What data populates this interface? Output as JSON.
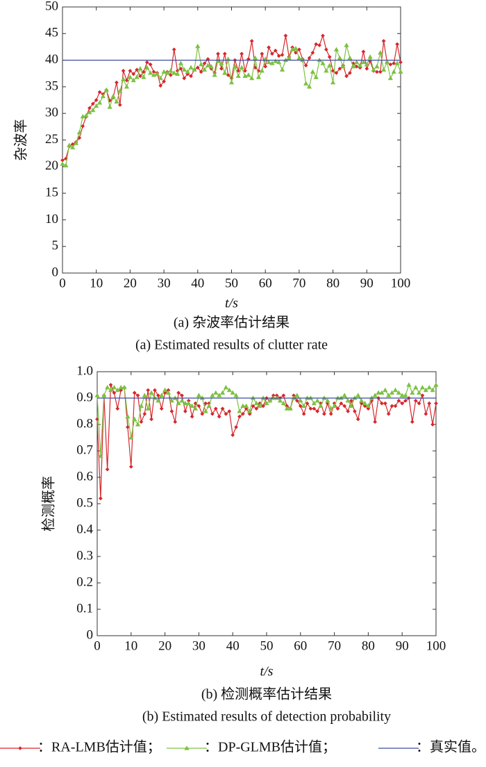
{
  "chart_data": [
    {
      "type": "line",
      "ylabel": "杂波率",
      "xlabel": "t/s",
      "caption": "(a) 杂波率估计结果",
      "caption_en": "(a) Estimated results of clutter rate",
      "x": [
        0,
        1,
        2,
        3,
        4,
        5,
        6,
        7,
        8,
        9,
        10,
        11,
        12,
        13,
        14,
        15,
        16,
        17,
        18,
        19,
        20,
        21,
        22,
        23,
        24,
        25,
        26,
        27,
        28,
        29,
        30,
        31,
        32,
        33,
        34,
        35,
        36,
        37,
        38,
        39,
        40,
        41,
        42,
        43,
        44,
        45,
        46,
        47,
        48,
        49,
        50,
        51,
        52,
        53,
        54,
        55,
        56,
        57,
        58,
        59,
        60,
        61,
        62,
        63,
        64,
        65,
        66,
        67,
        68,
        69,
        70,
        71,
        72,
        73,
        74,
        75,
        76,
        77,
        78,
        79,
        80,
        81,
        82,
        83,
        84,
        85,
        86,
        87,
        88,
        89,
        90,
        91,
        92,
        93,
        94,
        95,
        96,
        97,
        98,
        99,
        100
      ],
      "xlim": [
        0,
        100
      ],
      "xticks": [
        0,
        10,
        20,
        30,
        40,
        50,
        60,
        70,
        80,
        90,
        100
      ],
      "ylim": [
        0,
        50
      ],
      "yticks": [
        0,
        5,
        10,
        15,
        20,
        25,
        30,
        35,
        40,
        45,
        50
      ],
      "grid": false,
      "series": [
        {
          "name": "：RA-LMB估计值；",
          "color": "#d7262b",
          "marker": "diamond",
          "values": [
            21.2,
            21.5,
            23.8,
            24.2,
            24.6,
            25.4,
            27.6,
            29.4,
            31.0,
            31.8,
            32.5,
            34.0,
            33.6,
            34.4,
            32.4,
            33.0,
            35.8,
            31.6,
            38.0,
            36.2,
            38.0,
            37.4,
            38.2,
            37.0,
            37.8,
            39.6,
            39.2,
            37.8,
            37.6,
            35.2,
            36.0,
            37.8,
            37.2,
            42.0,
            38.0,
            38.4,
            36.6,
            37.4,
            37.0,
            38.2,
            38.6,
            37.8,
            39.4,
            40.2,
            38.4,
            37.6,
            41.2,
            38.4,
            41.2,
            37.2,
            36.6,
            40.0,
            38.0,
            41.2,
            38.0,
            40.2,
            43.6,
            38.6,
            38.0,
            41.2,
            38.8,
            42.4,
            41.2,
            41.8,
            40.8,
            41.0,
            44.6,
            40.6,
            42.4,
            41.4,
            42.0,
            40.2,
            39.0,
            40.4,
            41.4,
            43.0,
            42.8,
            44.6,
            42.0,
            40.6,
            38.0,
            37.6,
            38.4,
            39.0,
            37.0,
            37.6,
            39.4,
            38.8,
            38.6,
            41.6,
            38.4,
            39.8,
            38.0,
            37.8,
            37.8,
            43.6,
            39.6,
            39.2,
            39.4,
            43.0,
            39.6
          ]
        },
        {
          "name": "：DP-GLMB估计值；",
          "color": "#7cc142",
          "marker": "triangle",
          "values": [
            20.5,
            20.2,
            24.0,
            23.6,
            24.4,
            26.4,
            29.4,
            29.6,
            30.2,
            30.6,
            31.4,
            32.0,
            33.2,
            34.4,
            31.2,
            33.2,
            32.2,
            34.2,
            36.4,
            35.0,
            36.8,
            36.2,
            36.8,
            38.4,
            36.8,
            38.6,
            37.6,
            37.2,
            37.4,
            36.6,
            37.8,
            37.6,
            38.0,
            37.6,
            37.4,
            39.4,
            38.2,
            37.8,
            38.6,
            38.2,
            42.6,
            39.2,
            38.2,
            39.0,
            38.8,
            37.2,
            39.8,
            39.4,
            37.6,
            40.2,
            35.8,
            38.8,
            37.0,
            38.6,
            37.0,
            37.2,
            36.6,
            40.4,
            36.8,
            38.0,
            40.2,
            39.6,
            39.4,
            39.8,
            39.6,
            38.2,
            40.0,
            40.4,
            42.0,
            42.2,
            40.4,
            40.0,
            35.6,
            35.0,
            37.8,
            36.8,
            40.0,
            39.4,
            38.0,
            39.0,
            35.8,
            42.0,
            40.4,
            38.8,
            42.8,
            40.4,
            38.8,
            39.6,
            39.0,
            39.6,
            39.2,
            40.6,
            38.2,
            38.8,
            41.4,
            38.2,
            39.6,
            36.6,
            37.8,
            39.4,
            37.8
          ]
        },
        {
          "name": "：真实值。",
          "color": "#3a4aa0",
          "marker": "none",
          "x": [
            0,
            100
          ],
          "values": [
            40,
            40
          ]
        }
      ]
    },
    {
      "type": "line",
      "ylabel": "检测概率",
      "xlabel": "t/s",
      "caption": "(b) 检测概率估计结果",
      "caption_en": "(b) Estimated results of detection probability",
      "x": [
        0,
        1,
        2,
        3,
        4,
        5,
        6,
        7,
        8,
        9,
        10,
        11,
        12,
        13,
        14,
        15,
        16,
        17,
        18,
        19,
        20,
        21,
        22,
        23,
        24,
        25,
        26,
        27,
        28,
        29,
        30,
        31,
        32,
        33,
        34,
        35,
        36,
        37,
        38,
        39,
        40,
        41,
        42,
        43,
        44,
        45,
        46,
        47,
        48,
        49,
        50,
        51,
        52,
        53,
        54,
        55,
        56,
        57,
        58,
        59,
        60,
        61,
        62,
        63,
        64,
        65,
        66,
        67,
        68,
        69,
        70,
        71,
        72,
        73,
        74,
        75,
        76,
        77,
        78,
        79,
        80,
        81,
        82,
        83,
        84,
        85,
        86,
        87,
        88,
        89,
        90,
        91,
        92,
        93,
        94,
        95,
        96,
        97,
        98,
        99,
        100
      ],
      "xlim": [
        0,
        100
      ],
      "xticks": [
        0,
        10,
        20,
        30,
        40,
        50,
        60,
        70,
        80,
        90,
        100
      ],
      "ylim": [
        0,
        1
      ],
      "yticks": [
        0,
        0.1,
        0.2,
        0.3,
        0.4,
        0.5,
        0.6,
        0.7,
        0.8,
        0.9,
        {
          "value": 1,
          "label": "1.0"
        }
      ],
      "grid": false,
      "series": [
        {
          "color": "#d7262b",
          "marker": "diamond",
          "values": [
            0.82,
            0.52,
            0.91,
            0.63,
            0.95,
            0.92,
            0.86,
            0.93,
            0.94,
            0.79,
            0.64,
            0.92,
            0.91,
            0.81,
            0.84,
            0.93,
            0.82,
            0.93,
            0.91,
            0.86,
            0.92,
            0.93,
            0.85,
            0.81,
            0.92,
            0.91,
            0.85,
            0.89,
            0.83,
            0.88,
            0.87,
            0.84,
            0.88,
            0.88,
            0.84,
            0.86,
            0.83,
            0.86,
            0.84,
            0.85,
            0.76,
            0.79,
            0.83,
            0.84,
            0.86,
            0.84,
            0.87,
            0.86,
            0.88,
            0.87,
            0.9,
            0.89,
            0.91,
            0.91,
            0.9,
            0.91,
            0.87,
            0.86,
            0.91,
            0.89,
            0.87,
            0.84,
            0.88,
            0.86,
            0.86,
            0.85,
            0.88,
            0.84,
            0.88,
            0.84,
            0.88,
            0.86,
            0.88,
            0.87,
            0.85,
            0.89,
            0.85,
            0.82,
            0.88,
            0.87,
            0.86,
            0.89,
            0.81,
            0.9,
            0.88,
            0.88,
            0.84,
            0.87,
            0.87,
            0.89,
            0.88,
            0.89,
            0.9,
            0.81,
            0.89,
            0.88,
            0.91,
            0.84,
            0.88,
            0.8,
            0.88
          ]
        },
        {
          "color": "#7cc142",
          "marker": "triangle",
          "values": [
            0.91,
            0.68,
            0.91,
            0.94,
            0.93,
            0.94,
            0.93,
            0.94,
            0.94,
            0.83,
            0.75,
            0.82,
            0.8,
            0.87,
            0.91,
            0.86,
            0.92,
            0.9,
            0.89,
            0.91,
            0.93,
            0.92,
            0.89,
            0.9,
            0.88,
            0.89,
            0.88,
            0.88,
            0.87,
            0.86,
            0.91,
            0.9,
            0.85,
            0.87,
            0.91,
            0.92,
            0.91,
            0.92,
            0.94,
            0.93,
            0.92,
            0.91,
            0.85,
            0.87,
            0.87,
            0.85,
            0.9,
            0.88,
            0.87,
            0.9,
            0.88,
            0.89,
            0.9,
            0.9,
            0.89,
            0.88,
            0.86,
            0.86,
            0.9,
            0.91,
            0.89,
            0.87,
            0.9,
            0.9,
            0.88,
            0.89,
            0.87,
            0.9,
            0.89,
            0.86,
            0.87,
            0.9,
            0.9,
            0.91,
            0.89,
            0.87,
            0.9,
            0.91,
            0.89,
            0.88,
            0.87,
            0.9,
            0.91,
            0.92,
            0.92,
            0.93,
            0.91,
            0.92,
            0.93,
            0.92,
            0.91,
            0.91,
            0.95,
            0.92,
            0.94,
            0.92,
            0.94,
            0.93,
            0.94,
            0.93,
            0.95
          ]
        },
        {
          "color": "#3a4aa0",
          "marker": "none",
          "x": [
            0,
            100
          ],
          "values": [
            0.9,
            0.9
          ]
        }
      ]
    }
  ]
}
